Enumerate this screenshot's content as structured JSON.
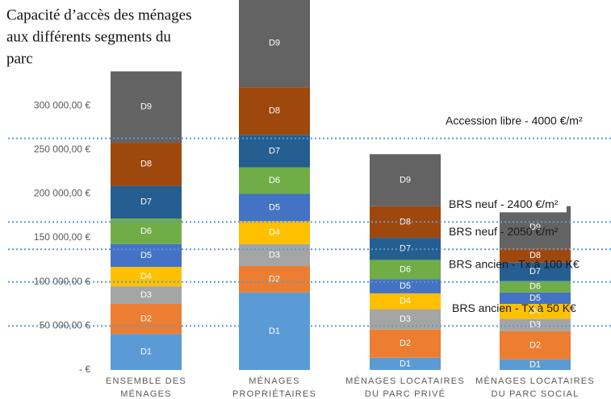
{
  "chart_data": {
    "type": "stacked_bar",
    "title": [
      "Capacité d’accès des ménages",
      "aux différents segments du",
      "parc"
    ],
    "categories": [
      [
        "ENSEMBLE DES",
        "MÉNAGES"
      ],
      [
        "MÉNAGES",
        "PROPRIÉTAIRES"
      ],
      [
        "MÉNAGES LOCATAIRES",
        "DU PARC PRIVÉ"
      ],
      [
        "MÉNAGES LOCATAIRES",
        "DU PARC SOCIAL"
      ]
    ],
    "series": [
      {
        "name": "D1",
        "color": "#5b9bd5",
        "values": [
          41000,
          88000,
          14000,
          12000
        ]
      },
      {
        "name": "D2",
        "color": "#ed7d31",
        "values": [
          34000,
          30000,
          32000,
          32000
        ]
      },
      {
        "name": "D3",
        "color": "#a5a5a5",
        "values": [
          20000,
          25000,
          23000,
          14000
        ]
      },
      {
        "name": "D4",
        "color": "#ffc000",
        "values": [
          22000,
          26000,
          18000,
          17000
        ]
      },
      {
        "name": "D5",
        "color": "#4472c4",
        "values": [
          26000,
          31000,
          16000,
          13000
        ]
      },
      {
        "name": "D6",
        "color": "#70ad47",
        "values": [
          29000,
          30000,
          22000,
          13000
        ]
      },
      {
        "name": "D7",
        "color": "#255e91",
        "values": [
          37000,
          37000,
          25000,
          21000
        ]
      },
      {
        "name": "D8",
        "color": "#9e480e",
        "values": [
          49000,
          54000,
          36000,
          16000
        ]
      },
      {
        "name": "D9",
        "color": "#636363",
        "values": [
          81000,
          100000,
          59000,
          48000
        ]
      }
    ],
    "ylim": [
      0,
      420000
    ],
    "yticks": [
      {
        "value": 0,
        "label": "-   €"
      },
      {
        "value": 50000,
        "label": "50 000,00 €"
      },
      {
        "value": 100000,
        "label": "100 000,00 €"
      },
      {
        "value": 150000,
        "label": "150 000,00 €"
      },
      {
        "value": 200000,
        "label": "200 000,00 €"
      },
      {
        "value": 250000,
        "label": "250 000,00 €"
      },
      {
        "value": 300000,
        "label": "300 000,00 €"
      }
    ],
    "annotations": [
      {
        "value": 263000,
        "label": "Accession libre - 4000 €/m²"
      },
      {
        "value": 168000,
        "label": "BRS neuf - 2400 €/m²"
      },
      {
        "value": 137000,
        "label": "BRS neuf - 2050 €/m²"
      },
      {
        "value": 100000,
        "label": "BRS ancien - Tx à 100 K€"
      },
      {
        "value": 50000,
        "label": "BRS ancien - Tx à 50 K€"
      }
    ],
    "reference_line_color": "#5b9bd5"
  }
}
